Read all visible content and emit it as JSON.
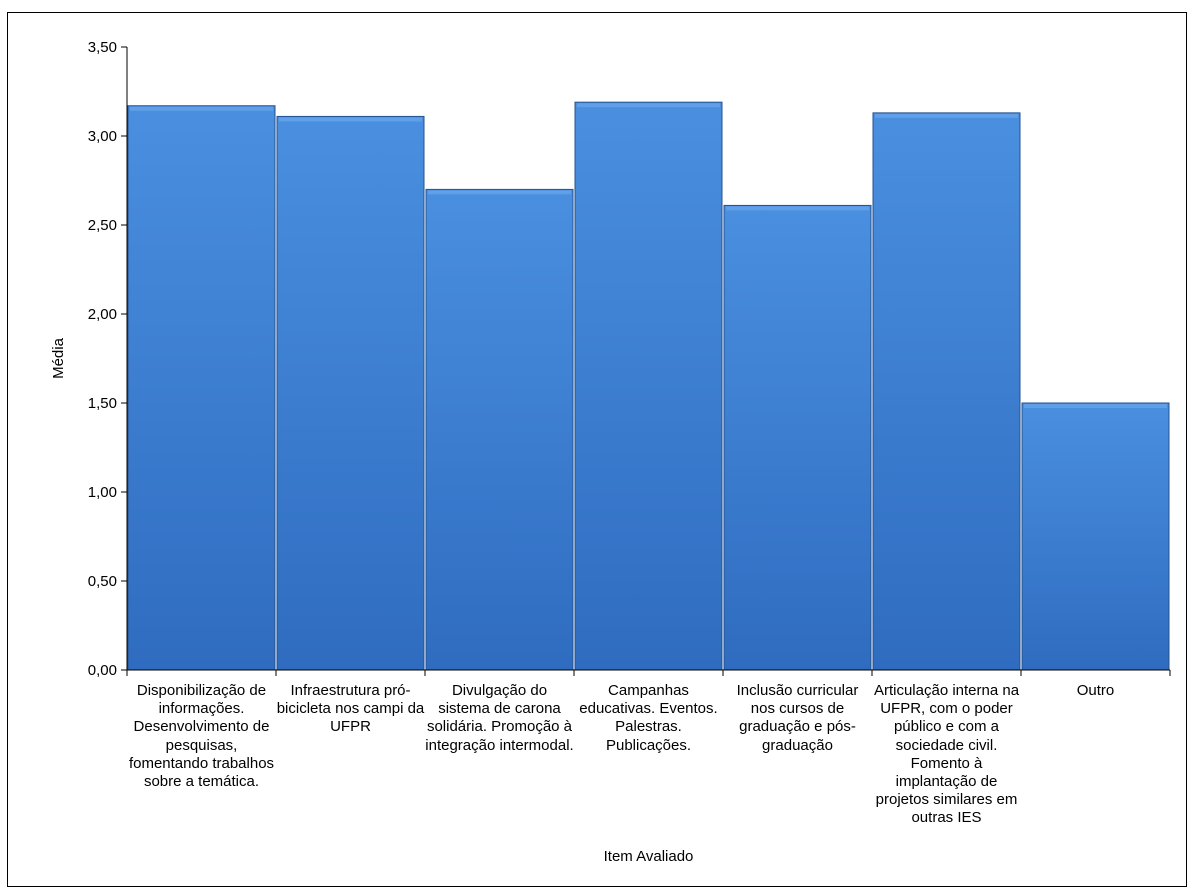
{
  "chart_data": {
    "type": "bar",
    "xlabel": "Item Avaliado",
    "ylabel": "Média",
    "ylim": [
      0,
      3.5
    ],
    "yticks": [
      "0,00",
      "0,50",
      "1,00",
      "1,50",
      "2,00",
      "2,50",
      "3,00",
      "3,50"
    ],
    "grid": false,
    "bar_color": "#3d7fd4",
    "categories": [
      "Disponibilização de informações. Desenvolvimento de pesquisas, fomentando trabalhos sobre a temática.",
      "Infraestrutura pró-bicicleta nos campi da UFPR",
      "Divulgação do sistema de carona solidária. Promoção à integração intermodal.",
      "Campanhas educativas. Eventos. Palestras. Publicações.",
      "Inclusão curricular nos cursos de graduação e pós-graduação",
      "Articulação interna na UFPR, com o poder público e com a sociedade civil. Fomento à implantação de projetos similares em outras IES",
      "Outro"
    ],
    "values": [
      3.17,
      3.11,
      2.7,
      3.19,
      2.61,
      3.13,
      1.5
    ]
  }
}
